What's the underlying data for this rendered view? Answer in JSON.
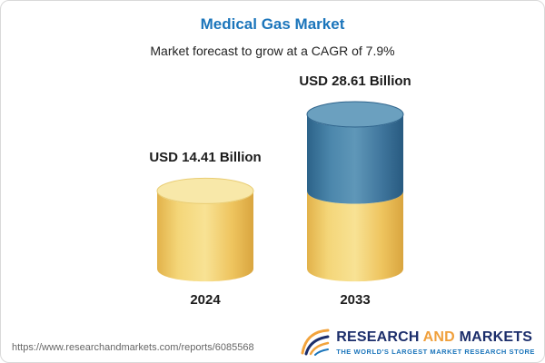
{
  "header": {
    "title": "Medical Gas Market",
    "subtitle": "Market forecast to grow at a CAGR of 7.9%"
  },
  "chart_data": {
    "type": "bar",
    "subtype": "3d-cylinder",
    "categories": [
      "2024",
      "2033"
    ],
    "values": [
      14.41,
      28.61
    ],
    "value_labels": [
      "USD 14.41 Billion",
      "USD 28.61 Billion"
    ],
    "unit": "USD Billion",
    "cagr_pct": 7.9,
    "title": "Medical Gas Market",
    "subtitle": "Market forecast to grow at a CAGR of 7.9%",
    "legend": "none",
    "axis": {
      "visible": false
    },
    "colors": {
      "bar_2024": "#f0cd68",
      "bar_2033_base": "#f0cd68",
      "bar_2033_growth": "#3d7ba6"
    }
  },
  "footer": {
    "url": "https://www.researchandmarkets.com/reports/6085568",
    "logo_research": "RESEARCH",
    "logo_and": "AND",
    "logo_markets": "MARKETS",
    "tagline": "THE WORLD'S LARGEST MARKET RESEARCH STORE"
  }
}
